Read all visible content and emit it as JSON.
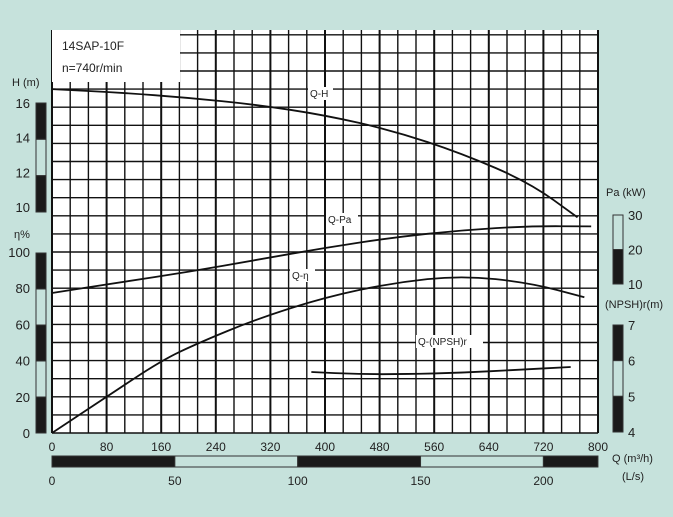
{
  "info": {
    "model": "14SAP-10F",
    "speed": "n=740r/min"
  },
  "chart_data": {
    "type": "line",
    "x": {
      "label": "Q (m³/h)",
      "range": [
        0,
        800
      ],
      "ticks": [
        0,
        80,
        160,
        240,
        320,
        400,
        480,
        560,
        640,
        720,
        800
      ]
    },
    "x2": {
      "label": "(L/s)",
      "range": [
        0,
        222.2
      ],
      "ticks": [
        0,
        50,
        100,
        150,
        200
      ]
    },
    "axes": {
      "H": {
        "label": "H (m)",
        "range": [
          10,
          16
        ],
        "ticks": [
          10,
          12,
          14,
          16
        ]
      },
      "eta": {
        "label": "η%",
        "range": [
          0,
          100
        ],
        "ticks": [
          0,
          20,
          40,
          60,
          80,
          100
        ]
      },
      "Pa": {
        "label": "Pa (kW)",
        "range": [
          10,
          30
        ],
        "ticks": [
          10,
          20,
          30
        ]
      },
      "NPSH": {
        "label": "(NPSH)r(m)",
        "range": [
          4,
          7
        ],
        "ticks": [
          4,
          5,
          6,
          7
        ]
      }
    },
    "grid": true,
    "series": [
      {
        "name": "Q-H",
        "axis": "H",
        "points": [
          [
            0,
            16.8
          ],
          [
            100,
            16.6
          ],
          [
            200,
            16.3
          ],
          [
            300,
            15.9
          ],
          [
            400,
            15.3
          ],
          [
            500,
            14.4
          ],
          [
            600,
            13.1
          ],
          [
            700,
            11.4
          ],
          [
            770,
            9.4
          ]
        ]
      },
      {
        "name": "Q-Pa",
        "axis": "Pa",
        "points": [
          [
            0,
            7.4
          ],
          [
            100,
            10.5
          ],
          [
            200,
            13.5
          ],
          [
            300,
            17
          ],
          [
            400,
            20.5
          ],
          [
            500,
            23.5
          ],
          [
            600,
            25.6
          ],
          [
            700,
            26.8
          ],
          [
            790,
            26.7
          ]
        ]
      },
      {
        "name": "Q-η",
        "axis": "eta",
        "points": [
          [
            0,
            0
          ],
          [
            80,
            20
          ],
          [
            160,
            40
          ],
          [
            216,
            50
          ],
          [
            300,
            63
          ],
          [
            400,
            75
          ],
          [
            500,
            83
          ],
          [
            600,
            87
          ],
          [
            700,
            83
          ],
          [
            780,
            75
          ]
        ]
      },
      {
        "name": "Q-(NPSH)r",
        "axis": "NPSH",
        "points": [
          [
            380,
            5.68
          ],
          [
            450,
            5.62
          ],
          [
            520,
            5.62
          ],
          [
            600,
            5.66
          ],
          [
            680,
            5.74
          ],
          [
            760,
            5.82
          ]
        ]
      }
    ],
    "colors": {
      "background": "#c6e2dc",
      "plot": "#ffffff",
      "ink": "#111111",
      "scale_light": "#c6e2dc"
    }
  }
}
